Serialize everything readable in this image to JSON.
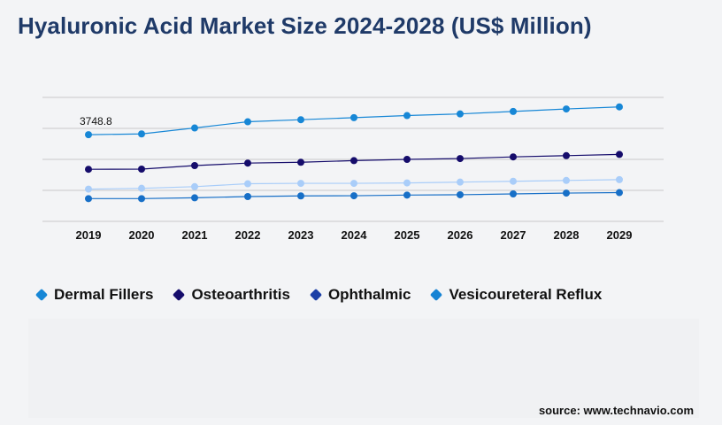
{
  "title": "Hyaluronic Acid Market Size 2024-2028 (US$ Million)",
  "source": "source: www.technavio.com",
  "chart_data": {
    "type": "line",
    "categories": [
      "2019",
      "2020",
      "2021",
      "2022",
      "2023",
      "2024",
      "2025",
      "2026",
      "2027",
      "2028",
      "2029"
    ],
    "series": [
      {
        "name": "Dermal Fillers",
        "color": "#1787d6",
        "values": [
          3748.8,
          3758,
          3830,
          3905,
          3930,
          3955,
          3980,
          4000,
          4030,
          4060,
          4085
        ]
      },
      {
        "name": "Osteoarthritis",
        "color": "#150c6b",
        "values": [
          3330,
          3332,
          3375,
          3405,
          3415,
          3435,
          3450,
          3460,
          3480,
          3495,
          3510
        ]
      },
      {
        "name": "Ophthalmic",
        "color": "#a9cdf9",
        "values": [
          3090,
          3100,
          3120,
          3155,
          3160,
          3160,
          3165,
          3175,
          3185,
          3195,
          3205
        ]
      },
      {
        "name": "Vesicoureteral Reflux",
        "color": "#176fc7",
        "values": [
          2975,
          2975,
          2985,
          3000,
          3008,
          3010,
          3018,
          3022,
          3032,
          3042,
          3048
        ]
      }
    ],
    "data_labels": [
      {
        "series": 0,
        "index": 0,
        "text": "3748.8"
      }
    ],
    "ylim": [
      2700,
      4200
    ],
    "grid": true,
    "legend_position": "bottom"
  },
  "legend": {
    "items": [
      {
        "label": "Dermal Fillers",
        "marker_color": "#1787d6"
      },
      {
        "label": "Osteoarthritis",
        "marker_color": "#150c6b"
      },
      {
        "label": "Ophthalmic",
        "marker_color": "#1b3fa6"
      },
      {
        "label": "Vesicoureteral Reflux",
        "marker_color": "#1583d4"
      }
    ]
  }
}
